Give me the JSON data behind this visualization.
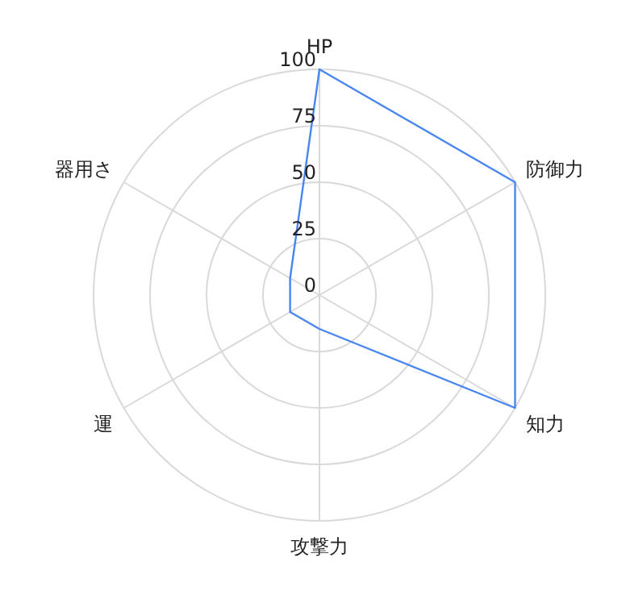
{
  "chart_data": {
    "type": "radar",
    "categories": [
      "HP",
      "防御力",
      "知力",
      "攻撃力",
      "運",
      "器用さ"
    ],
    "series": [
      {
        "color": "#4a86f0",
        "values": [
          100,
          100,
          100,
          15,
          15,
          15
        ]
      }
    ],
    "ylim": [
      0,
      100
    ],
    "yticks": [
      0,
      25,
      50,
      75,
      100
    ],
    "grid": true
  }
}
